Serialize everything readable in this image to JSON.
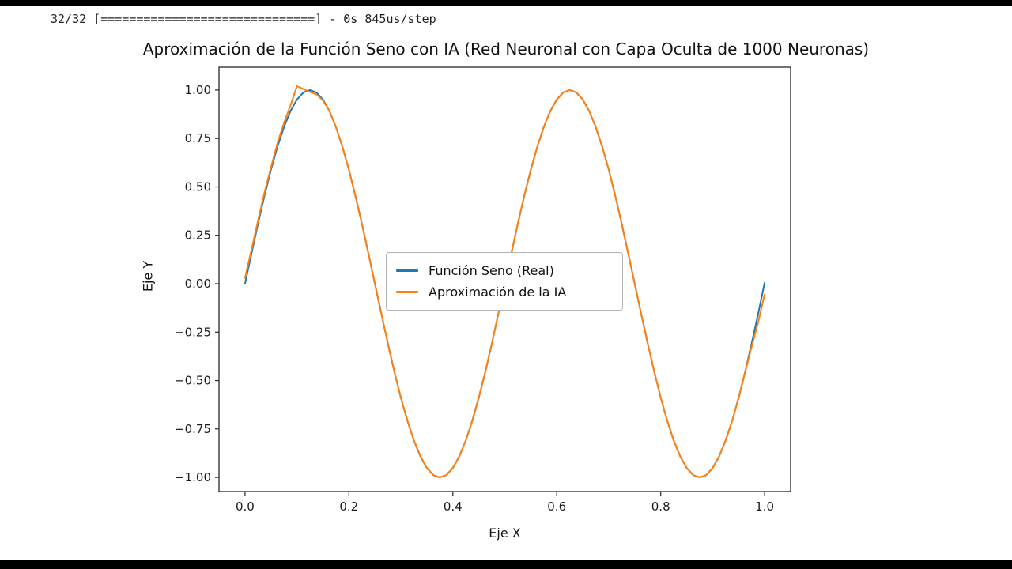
{
  "console": {
    "progress_line": "32/32 [==============================] - 0s 845us/step"
  },
  "chart_data": {
    "type": "line",
    "title": "Aproximación de la Función Seno con IA (Red Neuronal con Capa Oculta de 1000 Neuronas)",
    "xlabel": "Eje X",
    "ylabel": "Eje Y",
    "xlim": [
      -0.05,
      1.05
    ],
    "ylim": [
      -1.073,
      1.118
    ],
    "grid": false,
    "legend_position": "center-inside",
    "frame_color": "#262626",
    "xticks": {
      "values": [
        0.0,
        0.2,
        0.4,
        0.6,
        0.8,
        1.0
      ],
      "labels": [
        "0.0",
        "0.2",
        "0.4",
        "0.6",
        "0.8",
        "1.0"
      ]
    },
    "yticks": {
      "values": [
        -1.0,
        -0.75,
        -0.5,
        -0.25,
        0.0,
        0.25,
        0.5,
        0.75,
        1.0
      ],
      "labels": [
        "−1.00",
        "−0.75",
        "−0.50",
        "−0.25",
        "0.00",
        "0.25",
        "0.50",
        "0.75",
        "1.00"
      ]
    },
    "x": [
      0,
      0.0125,
      0.025,
      0.0375,
      0.05,
      0.0625,
      0.075,
      0.0875,
      0.1,
      0.1125,
      0.125,
      0.1375,
      0.15,
      0.1625,
      0.175,
      0.1875,
      0.2,
      0.2125,
      0.225,
      0.2375,
      0.25,
      0.2625,
      0.275,
      0.2875,
      0.3,
      0.3125,
      0.325,
      0.3375,
      0.35,
      0.3625,
      0.375,
      0.3875,
      0.4,
      0.4125,
      0.425,
      0.4375,
      0.45,
      0.4625,
      0.475,
      0.4875,
      0.5,
      0.5125,
      0.525,
      0.5375,
      0.55,
      0.5625,
      0.575,
      0.5875,
      0.6,
      0.6125,
      0.625,
      0.6375,
      0.65,
      0.6625,
      0.675,
      0.6875,
      0.7,
      0.7125,
      0.725,
      0.7375,
      0.75,
      0.7625,
      0.775,
      0.7875,
      0.8,
      0.8125,
      0.825,
      0.8375,
      0.85,
      0.8625,
      0.875,
      0.8875,
      0.9,
      0.9125,
      0.925,
      0.9375,
      0.95,
      0.9625,
      0.975,
      0.9875,
      1.0
    ],
    "series": [
      {
        "name": "Función Seno (Real)",
        "color": "#1f77b4",
        "values": [
          0,
          0.156,
          0.309,
          0.454,
          0.588,
          0.707,
          0.809,
          0.891,
          0.951,
          0.988,
          1,
          0.988,
          0.951,
          0.891,
          0.809,
          0.707,
          0.588,
          0.454,
          0.309,
          0.156,
          0,
          -0.156,
          -0.309,
          -0.454,
          -0.588,
          -0.707,
          -0.809,
          -0.891,
          -0.951,
          -0.988,
          -1,
          -0.988,
          -0.951,
          -0.891,
          -0.809,
          -0.707,
          -0.588,
          -0.454,
          -0.309,
          -0.156,
          0,
          0.156,
          0.309,
          0.454,
          0.588,
          0.707,
          0.809,
          0.891,
          0.951,
          0.988,
          1,
          0.988,
          0.951,
          0.891,
          0.809,
          0.707,
          0.588,
          0.454,
          0.309,
          0.156,
          0,
          -0.156,
          -0.309,
          -0.454,
          -0.588,
          -0.707,
          -0.809,
          -0.891,
          -0.951,
          -0.988,
          -1,
          -0.988,
          -0.951,
          -0.891,
          -0.809,
          -0.707,
          -0.588,
          -0.454,
          -0.309,
          -0.156,
          0.005
        ]
      },
      {
        "name": "Aproximación de la IA",
        "color": "#ff7f0e",
        "values": [
          0.03,
          0.175,
          0.325,
          0.47,
          0.6,
          0.725,
          0.83,
          0.92,
          1.02,
          1.005,
          0.99,
          0.978,
          0.946,
          0.891,
          0.809,
          0.707,
          0.588,
          0.454,
          0.309,
          0.156,
          0,
          -0.156,
          -0.309,
          -0.454,
          -0.588,
          -0.707,
          -0.809,
          -0.891,
          -0.951,
          -0.988,
          -1,
          -0.988,
          -0.951,
          -0.891,
          -0.809,
          -0.707,
          -0.588,
          -0.454,
          -0.309,
          -0.156,
          0,
          0.156,
          0.309,
          0.454,
          0.588,
          0.707,
          0.809,
          0.891,
          0.951,
          0.988,
          1,
          0.988,
          0.951,
          0.891,
          0.809,
          0.707,
          0.588,
          0.454,
          0.309,
          0.156,
          0,
          -0.156,
          -0.309,
          -0.454,
          -0.588,
          -0.707,
          -0.809,
          -0.891,
          -0.951,
          -0.988,
          -1,
          -0.988,
          -0.951,
          -0.891,
          -0.809,
          -0.707,
          -0.588,
          -0.455,
          -0.325,
          -0.2,
          -0.055
        ]
      }
    ]
  }
}
